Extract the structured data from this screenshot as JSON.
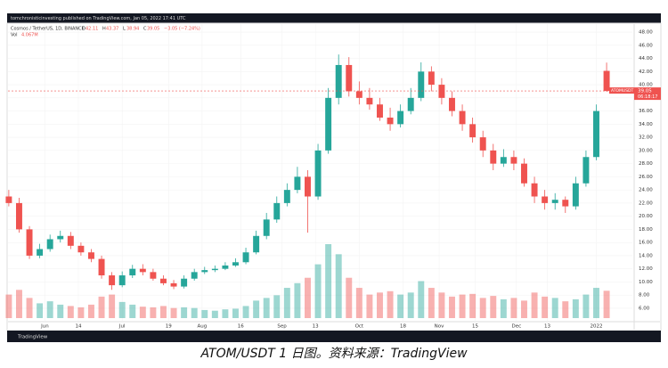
{
  "header": "tomchronisticinvesting published on TradingView.com, Jan 05, 2022 17:41 UTC",
  "caption": "ATOM/USDT 1 日图。资料来源：TradingView",
  "brand": "TradingView",
  "chart_data": {
    "type": "candlestick",
    "symbol": "Cosmos / TetherUS, 1D, BINANCE",
    "ohlc_letters": [
      "O",
      "H",
      "L",
      "C"
    ],
    "change_label": "−3.05 (−7.24%)",
    "volume_name": "Vol",
    "last_volume_label": "4.067M",
    "price_label": "ATOMUSDT",
    "countdown": "06:18:17",
    "up_color": "#26a69a",
    "down_color": "#ef5350",
    "x": [
      0,
      4,
      8,
      12,
      16,
      20,
      24,
      28,
      32,
      36,
      40,
      44,
      48,
      52,
      56,
      60,
      64,
      68,
      72,
      76,
      80,
      84,
      88,
      92,
      96,
      100,
      104,
      108,
      112,
      116,
      120,
      124,
      128,
      132,
      136,
      140,
      144,
      148,
      152,
      156,
      160,
      164,
      168,
      172,
      176,
      180,
      184,
      188,
      192,
      196,
      200,
      204,
      208,
      212,
      216,
      220,
      224,
      228,
      232
    ],
    "open": [
      23,
      22,
      18,
      14,
      15,
      16.5,
      17,
      15.5,
      14.5,
      13.5,
      11,
      9.5,
      11,
      12,
      11.5,
      10.5,
      9.8,
      9.3,
      10.5,
      11.5,
      11.8,
      12,
      12.5,
      13,
      14.5,
      17,
      19.5,
      22,
      24,
      26,
      23,
      30,
      38,
      43,
      39,
      38,
      37,
      35,
      34,
      36,
      38,
      42,
      40,
      38,
      36,
      34,
      32,
      30,
      28,
      29,
      28,
      25,
      23,
      22,
      22.5,
      21.5,
      25,
      29,
      42.11
    ],
    "high": [
      24,
      22.8,
      18.5,
      15.8,
      17.2,
      17.8,
      17.6,
      16,
      15,
      14,
      11.5,
      11.6,
      12.6,
      12.7,
      12,
      11,
      10.3,
      11,
      12,
      12.3,
      12.5,
      13,
      13.6,
      15.2,
      17.8,
      20.5,
      23,
      25,
      27.5,
      27,
      31,
      39.5,
      44.6,
      44.2,
      40.5,
      39.5,
      38,
      36.5,
      37,
      39.5,
      43.4,
      42.8,
      41,
      39,
      37,
      35,
      33,
      31,
      30.2,
      30,
      28.8,
      26,
      24,
      23.5,
      23,
      26,
      30,
      37,
      43.37
    ],
    "low": [
      21.5,
      17.5,
      13.5,
      13.6,
      14.6,
      16,
      15,
      14,
      13,
      10.5,
      8.8,
      9.2,
      10.6,
      11,
      10.2,
      9.5,
      8.9,
      9,
      10.2,
      11.2,
      11.5,
      11.8,
      12.3,
      12.7,
      14.2,
      16.5,
      19,
      21.5,
      23.5,
      17.5,
      22.5,
      29.5,
      37,
      38.2,
      37,
      36.2,
      34.5,
      33,
      33.5,
      35.5,
      37.5,
      39,
      37,
      35.2,
      33,
      31.2,
      29,
      27,
      27.5,
      27,
      24.5,
      22,
      21,
      21,
      20.5,
      21,
      24.5,
      28.5,
      38.94
    ],
    "close": [
      22,
      18,
      14,
      15,
      16.5,
      17,
      15.5,
      14.5,
      13.5,
      11,
      9.5,
      11,
      12,
      11.5,
      10.5,
      9.8,
      9.3,
      10.5,
      11.5,
      11.8,
      12,
      12.5,
      13,
      14.5,
      17,
      19.5,
      22,
      24,
      26,
      23,
      30,
      38,
      43,
      39,
      38,
      37,
      35,
      34,
      36,
      38,
      42,
      40,
      38,
      36,
      34,
      32,
      30,
      28,
      29,
      28,
      25,
      23,
      22,
      22.5,
      21.5,
      25,
      29,
      36,
      39.05
    ],
    "volume": [
      3.5,
      4.2,
      3,
      2.2,
      2.5,
      2,
      1.8,
      1.6,
      2,
      3.2,
      3.5,
      2.4,
      2,
      1.7,
      1.6,
      1.8,
      1.5,
      1.6,
      1.5,
      1.2,
      1.1,
      1.3,
      1.4,
      1.8,
      2.6,
      3,
      3.4,
      4.5,
      5.2,
      6,
      8,
      11,
      9.5,
      6,
      4.5,
      3.5,
      3.8,
      4,
      3.5,
      3.8,
      5.5,
      4.5,
      3.8,
      3.2,
      3.5,
      3.6,
      3,
      3.3,
      2.8,
      3,
      2.6,
      3.8,
      3.2,
      3,
      2.5,
      2.8,
      3.5,
      4.5,
      4.067
    ],
    "xlim": [
      -1,
      242
    ],
    "ylim": [
      4.5,
      49.5
    ],
    "vlim": [
      0,
      44
    ],
    "yticks": [
      {
        "value": 6,
        "label": "6.00"
      },
      {
        "value": 8,
        "label": "8.00"
      },
      {
        "value": 10,
        "label": "10.00"
      },
      {
        "value": 12,
        "label": "12.00"
      },
      {
        "value": 14,
        "label": "14.00"
      },
      {
        "value": 16,
        "label": "16.00"
      },
      {
        "value": 18,
        "label": "18.00"
      },
      {
        "value": 20,
        "label": "20.00"
      },
      {
        "value": 22,
        "label": "22.00"
      },
      {
        "value": 24,
        "label": "24.00"
      },
      {
        "value": 26,
        "label": "26.00"
      },
      {
        "value": 28,
        "label": "28.00"
      },
      {
        "value": 30,
        "label": "30.00"
      },
      {
        "value": 32,
        "label": "32.00"
      },
      {
        "value": 34,
        "label": "34.00"
      },
      {
        "value": 36,
        "label": "36.00"
      },
      {
        "value": 38,
        "label": "38.00"
      },
      {
        "value": 40,
        "label": "40.00"
      },
      {
        "value": 42,
        "label": "42.00"
      },
      {
        "value": 44,
        "label": "44.00"
      },
      {
        "value": 46,
        "label": "46.00"
      },
      {
        "value": 48,
        "label": "48.00"
      }
    ],
    "xticks": [
      {
        "value": 14,
        "label": "Jun"
      },
      {
        "value": 27,
        "label": "14"
      },
      {
        "value": 44,
        "label": "Jul"
      },
      {
        "value": 62,
        "label": "19"
      },
      {
        "value": 75,
        "label": "Aug"
      },
      {
        "value": 90,
        "label": "16"
      },
      {
        "value": 106,
        "label": "Sep"
      },
      {
        "value": 119,
        "label": "13"
      },
      {
        "value": 136,
        "label": "Oct"
      },
      {
        "value": 153,
        "label": "18"
      },
      {
        "value": 167,
        "label": "Nov"
      },
      {
        "value": 181,
        "label": "15"
      },
      {
        "value": 197,
        "label": "Dec"
      },
      {
        "value": 209,
        "label": "13"
      },
      {
        "value": 228,
        "label": "2022"
      }
    ],
    "grid": true
  }
}
